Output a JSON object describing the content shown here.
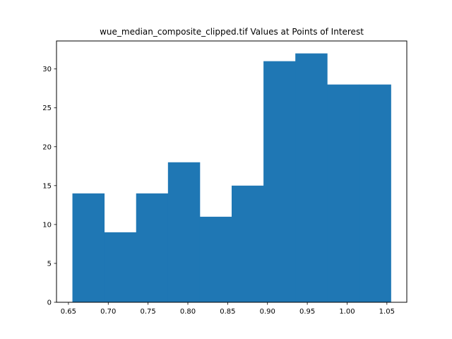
{
  "chart_data": {
    "type": "bar",
    "title": "wue_median_composite_clipped.tif Values at Points of Interest",
    "xlabel": "",
    "ylabel": "",
    "bar_color": "#1f77b4",
    "bins": [
      {
        "x0": 0.655,
        "x1": 0.695,
        "count": 14
      },
      {
        "x0": 0.695,
        "x1": 0.735,
        "count": 9
      },
      {
        "x0": 0.735,
        "x1": 0.775,
        "count": 14
      },
      {
        "x0": 0.775,
        "x1": 0.815,
        "count": 18
      },
      {
        "x0": 0.815,
        "x1": 0.855,
        "count": 11
      },
      {
        "x0": 0.855,
        "x1": 0.895,
        "count": 15
      },
      {
        "x0": 0.895,
        "x1": 0.935,
        "count": 31
      },
      {
        "x0": 0.935,
        "x1": 0.975,
        "count": 32
      },
      {
        "x0": 0.975,
        "x1": 1.015,
        "count": 28
      },
      {
        "x0": 1.015,
        "x1": 1.055,
        "count": 28
      }
    ],
    "xlim": [
      0.635,
      1.075
    ],
    "ylim": [
      0,
      33.6
    ],
    "xticks": [
      "0.65",
      "0.70",
      "0.75",
      "0.80",
      "0.85",
      "0.90",
      "0.95",
      "1.00",
      "1.05"
    ],
    "yticks": [
      "0",
      "5",
      "10",
      "15",
      "20",
      "25",
      "30"
    ],
    "grid": false
  }
}
